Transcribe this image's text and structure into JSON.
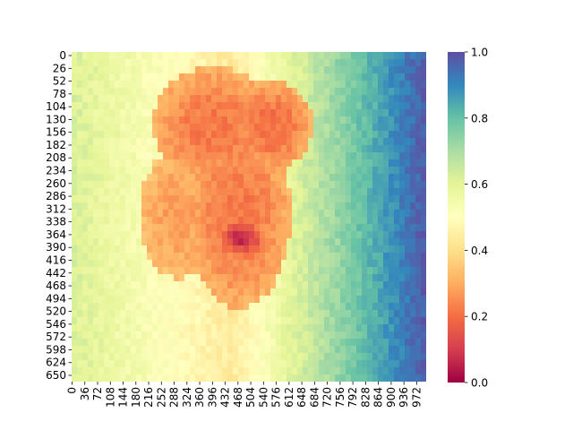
{
  "chart_data": {
    "type": "heatmap",
    "title": "",
    "xlabel": "",
    "ylabel": "",
    "colormap": "Spectral",
    "colorbar": {
      "min": 0.0,
      "max": 1.0,
      "ticks": [
        "0.0",
        "0.2",
        "0.4",
        "0.6",
        "0.8",
        "1.0"
      ]
    },
    "x_tick_labels": [
      "0",
      "36",
      "72",
      "108",
      "144",
      "180",
      "216",
      "252",
      "288",
      "324",
      "360",
      "396",
      "432",
      "468",
      "504",
      "540",
      "576",
      "612",
      "648",
      "684",
      "720",
      "756",
      "792",
      "828",
      "864",
      "900",
      "936",
      "972"
    ],
    "y_tick_labels": [
      "0",
      "26",
      "52",
      "78",
      "104",
      "130",
      "156",
      "182",
      "208",
      "234",
      "260",
      "286",
      "312",
      "338",
      "364",
      "390",
      "416",
      "442",
      "468",
      "494",
      "520",
      "546",
      "572",
      "598",
      "624",
      "650"
    ],
    "data_extent": {
      "cols": 1000,
      "rows": 670
    },
    "description_values": {
      "background_gradient": "values rise from about 0.55 near the left edge down to ~0.45 at center and up to ~0.95 at the right edge",
      "subject_low_values": "central eagle-head region with values between 0.05 and 0.35, darkest (~0.05) around x 430-560, y 330-400"
    }
  }
}
